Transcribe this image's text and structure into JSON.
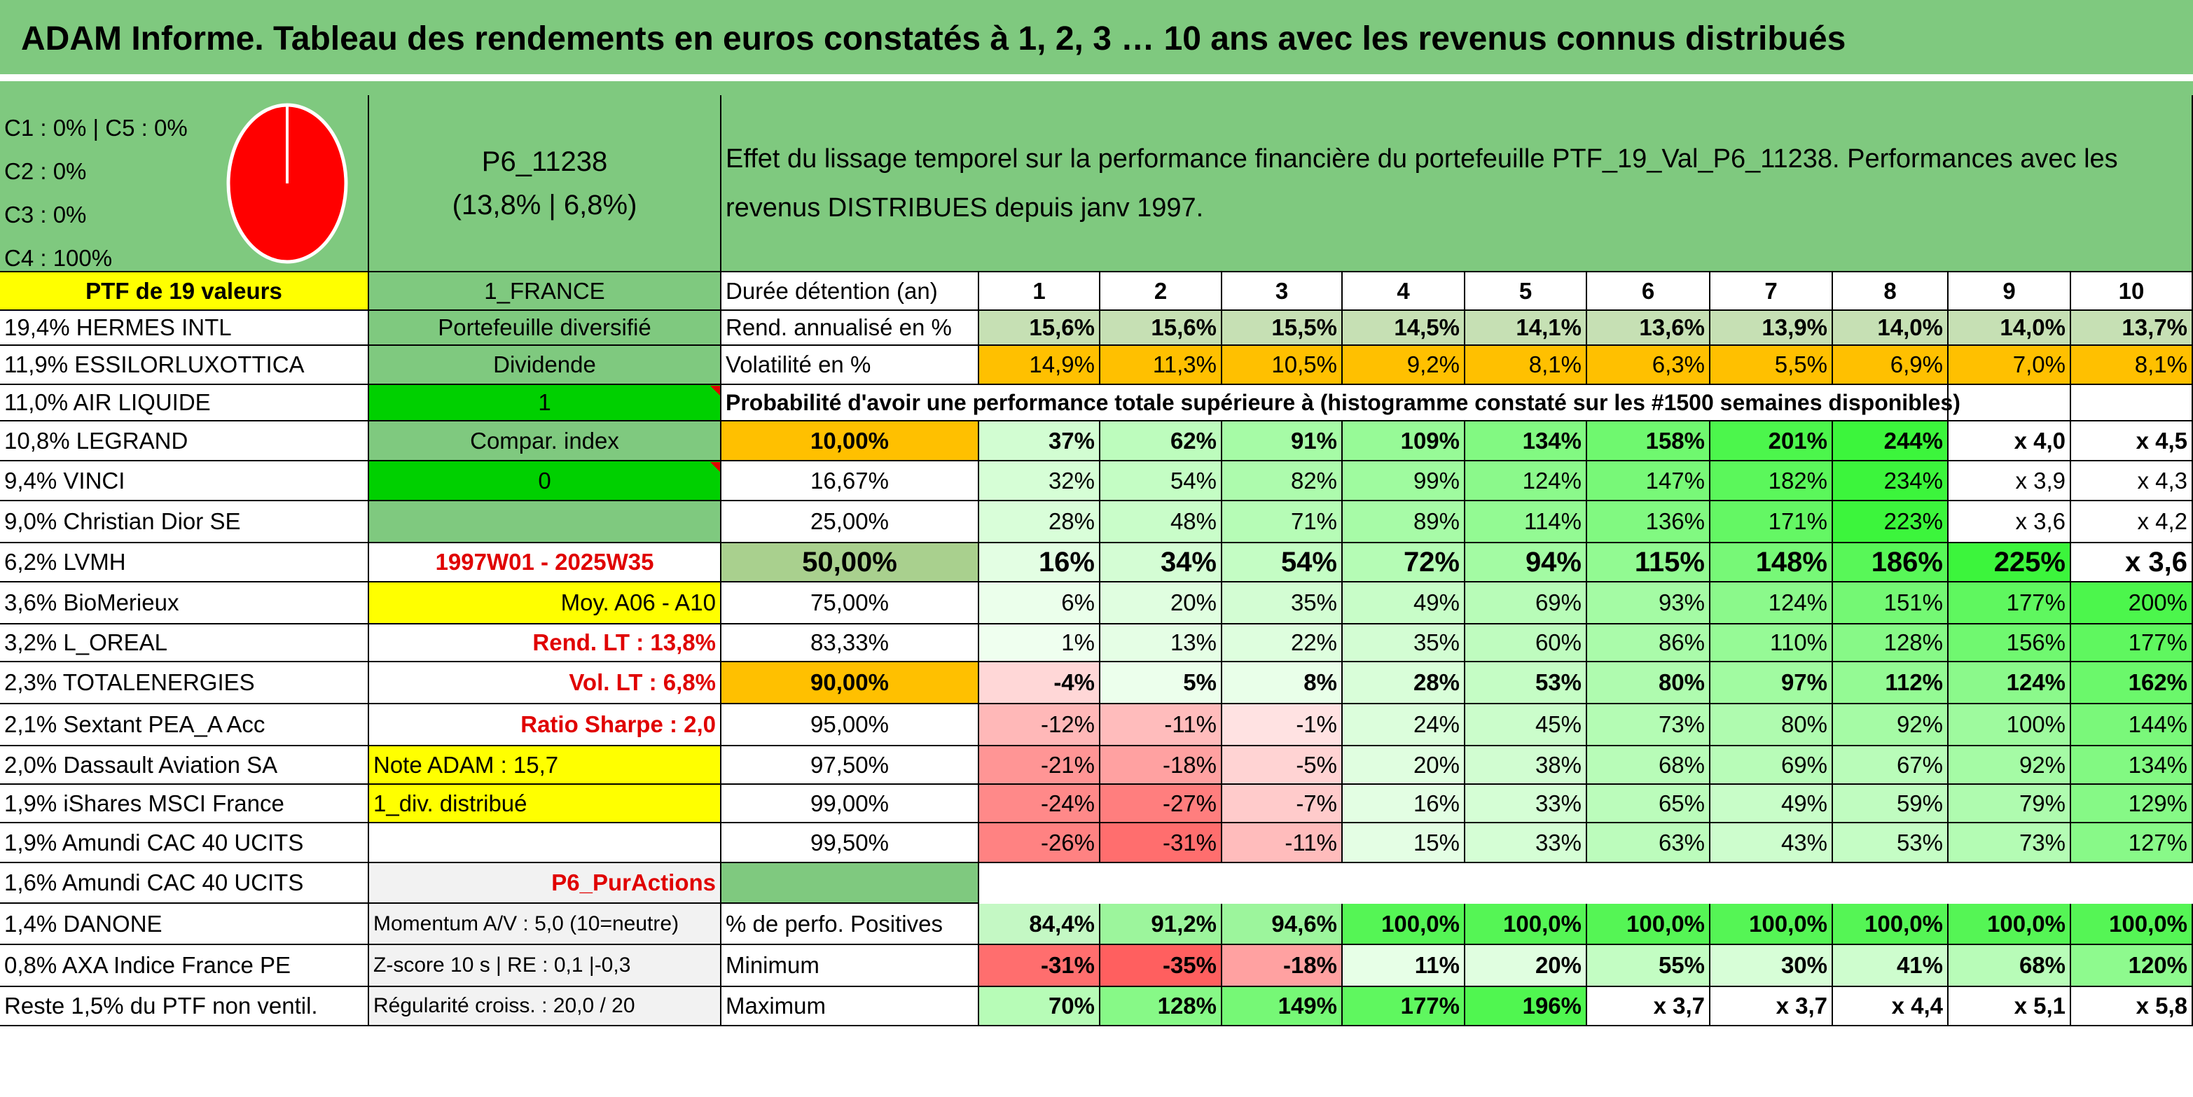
{
  "title": "ADAM Informe. Tableau des rendements en euros constatés à 1, 2, 3 … 10 ans avec les revenus connus distribués",
  "allocation": {
    "legend": [
      "C1 : 0% | C5 : 0%",
      "C2 : 0%",
      "C3 : 0%",
      "C4 : 100%"
    ],
    "pie_color": "#ff0000"
  },
  "portfolio": {
    "code": "P6_11238",
    "perf": "(13,8% | 6,8%)",
    "description_1": "Effet du lissage temporel sur la performance financière du portefeuille PTF_19_Val_P6_11238. Performances avec les",
    "description_2": "revenus DISTRIBUES depuis janv 1997.",
    "ptf_label": "PTF de 19 valeurs",
    "country": "1_FRANCE"
  },
  "holdings": [
    "19,4% HERMES INTL",
    "11,9% ESSILORLUXOTTICA",
    "11,0% AIR LIQUIDE",
    "10,8% LEGRAND",
    "9,4% VINCI",
    "9,0% Christian Dior SE",
    "6,2% LVMH",
    "3,6% BioMerieux",
    "3,2% L_OREAL",
    "2,3% TOTALENERGIES",
    "2,1% Sextant PEA_A Acc",
    "2,0% Dassault Aviation SA",
    "1,9% iShares MSCI France",
    "1,9% Amundi CAC 40 UCITS",
    "1,6% Amundi CAC 40 UCITS",
    "1,4% DANONE",
    "0,8% AXA Indice France PE",
    "Reste 1,5% du PTF non ventil."
  ],
  "info": {
    "diversifie": "Portefeuille diversifié",
    "dividende": "Dividende",
    "div_value": "1",
    "compar": "Compar. index",
    "compar_value": "0",
    "period": "1997W01 - 2025W35",
    "moy": "Moy. A06 - A10",
    "rend_lt": "Rend. LT : 13,8%",
    "vol_lt": "Vol. LT : 6,8%",
    "sharpe": "Ratio Sharpe : 2,0",
    "note": "Note ADAM : 15,7",
    "div_distrib": "1_div. distribué",
    "pur_actions": "P6_PurActions",
    "momentum": "Momentum A/V : 5,0 (10=neutre)",
    "zscore": "Z-score 10 s | RE : 0,1 |-0,3",
    "regularite": "Régularité croiss. : 20,0 / 20"
  },
  "table": {
    "duree_label": "Durée détention (an)",
    "years": [
      "1",
      "2",
      "3",
      "4",
      "5",
      "6",
      "7",
      "8",
      "9",
      "10"
    ],
    "rend_label": "Rend. annualisé en %",
    "rend": [
      "15,6%",
      "15,6%",
      "15,5%",
      "14,5%",
      "14,1%",
      "13,6%",
      "13,9%",
      "14,0%",
      "14,0%",
      "13,7%"
    ],
    "vol_label": "Volatilité en %",
    "vol": [
      "14,9%",
      "11,3%",
      "10,5%",
      "9,2%",
      "8,1%",
      "6,3%",
      "5,5%",
      "6,9%",
      "7,0%",
      "8,1%"
    ],
    "prob_label": "Probabilité d'avoir une performance totale supérieure à (histogramme constaté sur les #1500 semaines disponibles)",
    "prob_rows": [
      {
        "p": "10,00%",
        "v": [
          "37%",
          "62%",
          "91%",
          "109%",
          "134%",
          "158%",
          "201%",
          "244%",
          "x 4,0",
          "x 4,5"
        ]
      },
      {
        "p": "16,67%",
        "v": [
          "32%",
          "54%",
          "82%",
          "99%",
          "124%",
          "147%",
          "182%",
          "234%",
          "x 3,9",
          "x 4,3"
        ]
      },
      {
        "p": "25,00%",
        "v": [
          "28%",
          "48%",
          "71%",
          "89%",
          "114%",
          "136%",
          "171%",
          "223%",
          "x 3,6",
          "x 4,2"
        ]
      },
      {
        "p": "50,00%",
        "v": [
          "16%",
          "34%",
          "54%",
          "72%",
          "94%",
          "115%",
          "148%",
          "186%",
          "225%",
          "x 3,6"
        ]
      },
      {
        "p": "75,00%",
        "v": [
          "6%",
          "20%",
          "35%",
          "49%",
          "69%",
          "93%",
          "124%",
          "151%",
          "177%",
          "200%"
        ]
      },
      {
        "p": "83,33%",
        "v": [
          "1%",
          "13%",
          "22%",
          "35%",
          "60%",
          "86%",
          "110%",
          "128%",
          "156%",
          "177%"
        ]
      },
      {
        "p": "90,00%",
        "v": [
          "-4%",
          "5%",
          "8%",
          "28%",
          "53%",
          "80%",
          "97%",
          "112%",
          "124%",
          "162%"
        ]
      },
      {
        "p": "95,00%",
        "v": [
          "-12%",
          "-11%",
          "-1%",
          "24%",
          "45%",
          "73%",
          "80%",
          "92%",
          "100%",
          "144%"
        ]
      },
      {
        "p": "97,50%",
        "v": [
          "-21%",
          "-18%",
          "-5%",
          "20%",
          "38%",
          "68%",
          "69%",
          "67%",
          "92%",
          "134%"
        ]
      },
      {
        "p": "99,00%",
        "v": [
          "-24%",
          "-27%",
          "-7%",
          "16%",
          "33%",
          "65%",
          "49%",
          "59%",
          "79%",
          "129%"
        ]
      },
      {
        "p": "99,50%",
        "v": [
          "-26%",
          "-31%",
          "-11%",
          "15%",
          "33%",
          "63%",
          "43%",
          "53%",
          "73%",
          "127%"
        ]
      }
    ],
    "pos_label": "% de perfo. Positives",
    "pos": [
      "84,4%",
      "91,2%",
      "94,6%",
      "100,0%",
      "100,0%",
      "100,0%",
      "100,0%",
      "100,0%",
      "100,0%",
      "100,0%"
    ],
    "min_label": "Minimum",
    "min": [
      "-31%",
      "-35%",
      "-18%",
      "11%",
      "20%",
      "55%",
      "30%",
      "41%",
      "68%",
      "120%"
    ],
    "max_label": "Maximum",
    "max": [
      "70%",
      "128%",
      "149%",
      "177%",
      "196%",
      "x 3,7",
      "x 3,7",
      "x 4,4",
      "x 5,1",
      "x 5,8"
    ]
  },
  "colors": {
    "header_green": "#7fc97f",
    "yellow": "#ffff00",
    "bright_green": "#00d000",
    "orange": "#ffc000",
    "light_gray": "#f2f2f2",
    "red_text": "#e00000"
  }
}
